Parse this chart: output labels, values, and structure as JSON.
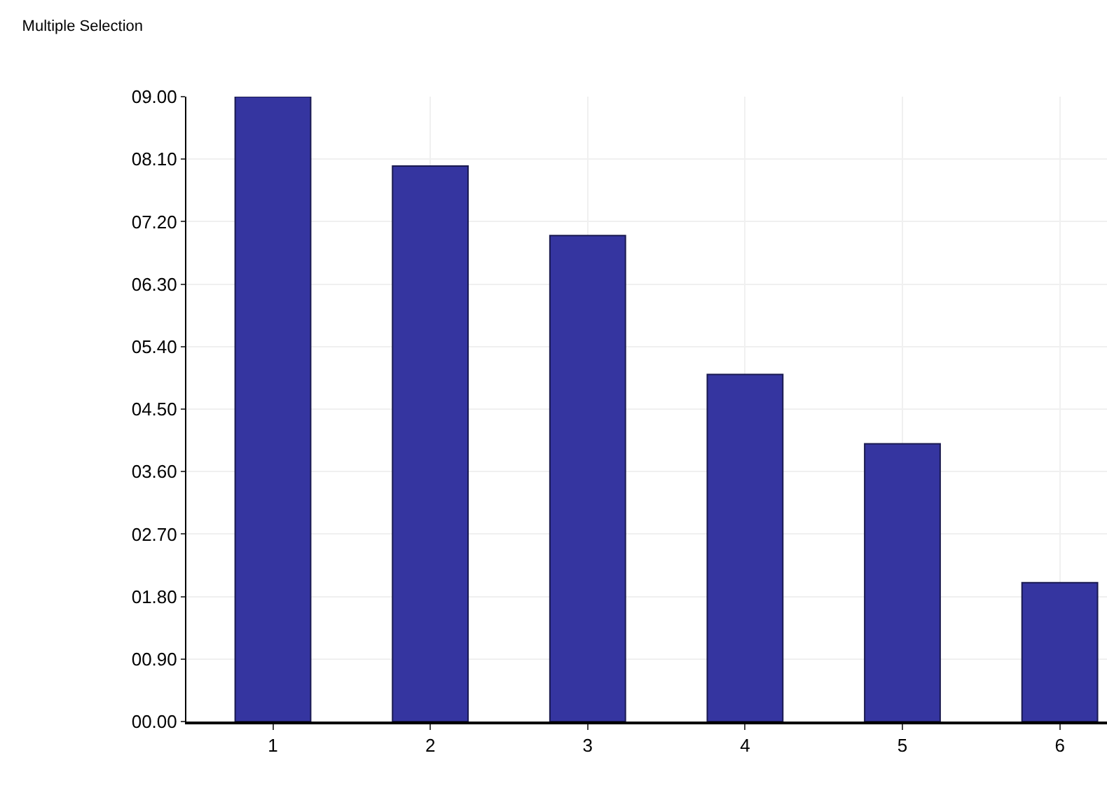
{
  "chart_data": {
    "type": "bar",
    "title": "Multiple Selection",
    "categories": [
      "1",
      "2",
      "3",
      "4",
      "5",
      "6"
    ],
    "values": [
      9,
      8,
      7,
      5,
      4,
      2
    ],
    "color": "#3535a0",
    "ylim": [
      0,
      9
    ],
    "yticks": [
      {
        "value": 0,
        "label": "00.00"
      },
      {
        "value": 0.9,
        "label": "00.90"
      },
      {
        "value": 1.8,
        "label": "01.80"
      },
      {
        "value": 2.7,
        "label": "02.70"
      },
      {
        "value": 3.6,
        "label": "03.60"
      },
      {
        "value": 4.5,
        "label": "04.50"
      },
      {
        "value": 5.4,
        "label": "05.40"
      },
      {
        "value": 6.3,
        "label": "06.30"
      },
      {
        "value": 7.2,
        "label": "07.20"
      },
      {
        "value": 8.1,
        "label": "08.10"
      },
      {
        "value": 9,
        "label": "09.00"
      }
    ],
    "grid": true
  }
}
